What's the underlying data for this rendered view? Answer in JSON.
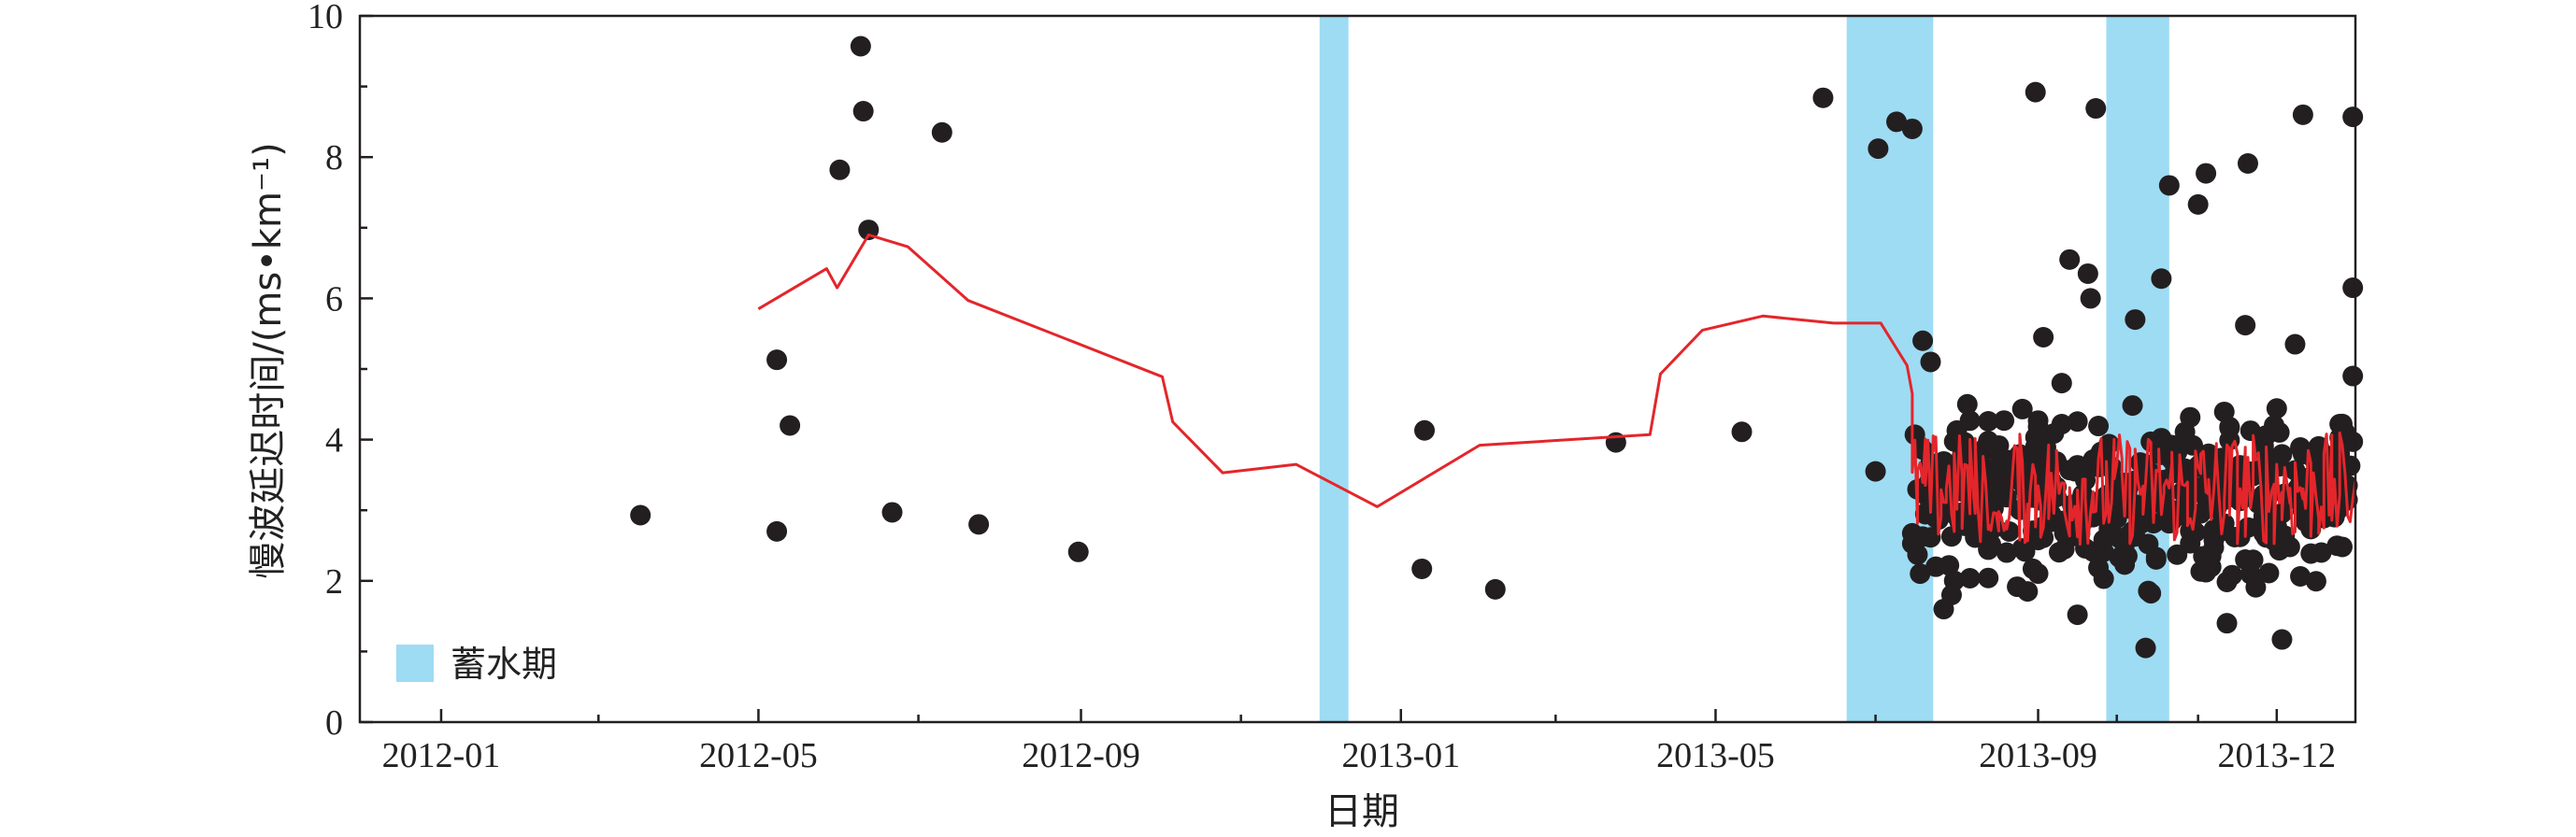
{
  "chart_data": {
    "type": "scatter",
    "ylabel": "慢波延迟时间/(ms•km⁻¹)",
    "xlabel": "日期",
    "ylim": [
      0,
      10
    ],
    "yticks": [
      0,
      2,
      4,
      6,
      8,
      10
    ],
    "xlim": [
      "2011-12-01",
      "2013-12-31"
    ],
    "xticks": [
      {
        "date": "2012-01-01",
        "label": "2012-01"
      },
      {
        "date": "2012-05-01",
        "label": "2012-05"
      },
      {
        "date": "2012-09-01",
        "label": "2012-09"
      },
      {
        "date": "2013-01-01",
        "label": "2013-01"
      },
      {
        "date": "2013-05-01",
        "label": "2013-05"
      },
      {
        "date": "2013-09-01",
        "label": "2013-09"
      },
      {
        "date": "2013-12-01",
        "label": "2013-12"
      }
    ],
    "minor_xticks": [
      "2012-03-01",
      "2012-07-01",
      "2012-11-01",
      "2013-03-01",
      "2013-07-01",
      "2013-10-01",
      "2013-11-01"
    ],
    "grid": false,
    "legend": {
      "position": "bottom-left",
      "label": "蓄水期",
      "color": "#9edcf4"
    },
    "reservoir_periods": [
      [
        "2012-12-01",
        "2012-12-12"
      ],
      [
        "2013-06-20",
        "2013-07-23"
      ],
      [
        "2013-09-27",
        "2013-10-21"
      ]
    ],
    "series": [
      {
        "kind": "scatter",
        "color": "#231f20",
        "points": [
          [
            "2012-03-17",
            2.93
          ],
          [
            "2012-05-08",
            2.7
          ],
          [
            "2012-05-08",
            5.13
          ],
          [
            "2012-05-13",
            4.2
          ],
          [
            "2012-06-01",
            7.82
          ],
          [
            "2012-06-09",
            9.57
          ],
          [
            "2012-06-10",
            8.65
          ],
          [
            "2012-06-12",
            6.97
          ],
          [
            "2012-06-21",
            2.97
          ],
          [
            "2012-07-10",
            8.35
          ],
          [
            "2012-07-24",
            2.8
          ],
          [
            "2012-08-31",
            2.41
          ],
          [
            "2013-01-09",
            2.17
          ],
          [
            "2013-01-10",
            4.13
          ],
          [
            "2013-02-06",
            1.88
          ],
          [
            "2013-03-24",
            3.96
          ],
          [
            "2013-05-11",
            4.11
          ],
          [
            "2013-06-11",
            8.84
          ],
          [
            "2013-07-01",
            3.55
          ],
          [
            "2013-07-02",
            8.12
          ],
          [
            "2013-07-09",
            8.5
          ],
          [
            "2013-07-15",
            8.4
          ],
          [
            "2013-07-19",
            5.4
          ],
          [
            "2013-07-22",
            5.1
          ],
          [
            "2013-07-24",
            2.2
          ],
          [
            "2013-07-27",
            1.6
          ],
          [
            "2013-07-30",
            1.8
          ],
          [
            "2013-08-05",
            4.5
          ],
          [
            "2013-08-10",
            3.2
          ],
          [
            "2013-08-16",
            3.6
          ],
          [
            "2013-08-20",
            2.4
          ],
          [
            "2013-08-28",
            1.85
          ],
          [
            "2013-08-31",
            8.92
          ],
          [
            "2013-09-03",
            5.45
          ],
          [
            "2013-09-10",
            4.8
          ],
          [
            "2013-09-13",
            6.55
          ],
          [
            "2013-09-16",
            1.52
          ],
          [
            "2013-09-20",
            6.35
          ],
          [
            "2013-09-21",
            6.0
          ],
          [
            "2013-09-23",
            8.69
          ],
          [
            "2013-10-08",
            5.7
          ],
          [
            "2013-10-12",
            1.05
          ],
          [
            "2013-10-18",
            6.28
          ],
          [
            "2013-10-21",
            7.6
          ],
          [
            "2013-11-01",
            7.33
          ],
          [
            "2013-11-04",
            7.77
          ],
          [
            "2013-11-12",
            1.4
          ],
          [
            "2013-11-19",
            5.62
          ],
          [
            "2013-11-20",
            7.91
          ],
          [
            "2013-12-03",
            1.17
          ],
          [
            "2013-12-08",
            5.35
          ],
          [
            "2013-12-11",
            8.6
          ],
          [
            "2013-12-30",
            8.57
          ],
          [
            "2013-12-30",
            6.15
          ],
          [
            "2013-12-30",
            4.9
          ]
        ],
        "dense_cluster": {
          "from": "2013-07-15",
          "to": "2013-12-31",
          "ymin": 1.5,
          "ymax": 5.0,
          "center": 3.2,
          "approx_count": 420
        }
      },
      {
        "kind": "line",
        "color": "#e3262b",
        "points": [
          [
            "2012-05-01",
            5.85
          ],
          [
            "2012-05-27",
            6.42
          ],
          [
            "2012-05-31",
            6.15
          ],
          [
            "2012-06-12",
            6.9
          ],
          [
            "2012-06-27",
            6.73
          ],
          [
            "2012-07-20",
            5.97
          ],
          [
            "2012-10-02",
            4.89
          ],
          [
            "2012-10-06",
            4.25
          ],
          [
            "2012-10-25",
            3.53
          ],
          [
            "2012-11-22",
            3.65
          ],
          [
            "2012-12-23",
            3.05
          ],
          [
            "2013-01-31",
            3.92
          ],
          [
            "2013-04-06",
            4.07
          ],
          [
            "2013-04-10",
            4.93
          ],
          [
            "2013-04-26",
            5.55
          ],
          [
            "2013-05-19",
            5.75
          ],
          [
            "2013-06-15",
            5.65
          ],
          [
            "2013-07-03",
            5.65
          ],
          [
            "2013-07-13",
            5.05
          ],
          [
            "2013-07-15",
            4.65
          ]
        ],
        "dense_segment": {
          "from": "2013-07-15",
          "to": "2013-12-31",
          "ymin": 2.5,
          "ymax": 4.6
        }
      }
    ]
  }
}
